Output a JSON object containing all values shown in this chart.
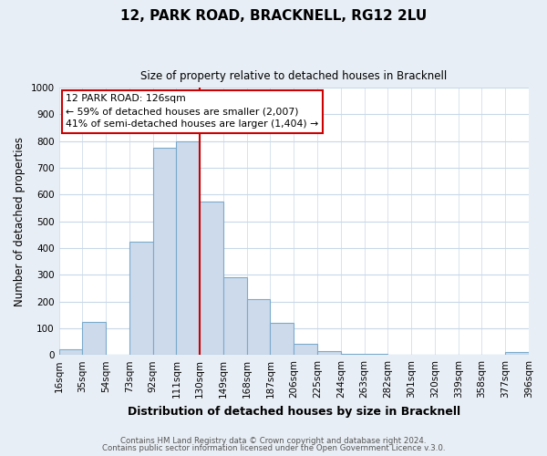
{
  "title": "12, PARK ROAD, BRACKNELL, RG12 2LU",
  "subtitle": "Size of property relative to detached houses in Bracknell",
  "xlabel": "Distribution of detached houses by size in Bracknell",
  "ylabel": "Number of detached properties",
  "bin_labels": [
    "16sqm",
    "35sqm",
    "54sqm",
    "73sqm",
    "92sqm",
    "111sqm",
    "130sqm",
    "149sqm",
    "168sqm",
    "187sqm",
    "206sqm",
    "225sqm",
    "244sqm",
    "263sqm",
    "282sqm",
    "301sqm",
    "320sqm",
    "339sqm",
    "358sqm",
    "377sqm",
    "396sqm"
  ],
  "bar_heights": [
    20,
    125,
    0,
    425,
    775,
    800,
    575,
    290,
    210,
    120,
    40,
    15,
    5,
    5,
    0,
    0,
    0,
    0,
    0,
    10
  ],
  "bar_color": "#cddaeb",
  "bar_edge_color": "#7aaacc",
  "bin_edges": [
    16,
    35,
    54,
    73,
    92,
    111,
    130,
    149,
    168,
    187,
    206,
    225,
    244,
    263,
    282,
    301,
    320,
    339,
    358,
    377,
    396
  ],
  "annotation_title": "12 PARK ROAD: 126sqm",
  "annotation_line1": "← 59% of detached houses are smaller (2,007)",
  "annotation_line2": "41% of semi-detached houses are larger (1,404) →",
  "annotation_box_color": "#ffffff",
  "annotation_border_color": "#cc0000",
  "vline_color": "#cc0000",
  "ylim": [
    0,
    1000
  ],
  "yticks": [
    0,
    100,
    200,
    300,
    400,
    500,
    600,
    700,
    800,
    900,
    1000
  ],
  "footer1": "Contains HM Land Registry data © Crown copyright and database right 2024.",
  "footer2": "Contains public sector information licensed under the Open Government Licence v.3.0.",
  "bg_color": "#e8eef5",
  "plot_bg_color": "#ffffff",
  "grid_color": "#c8d8e8"
}
